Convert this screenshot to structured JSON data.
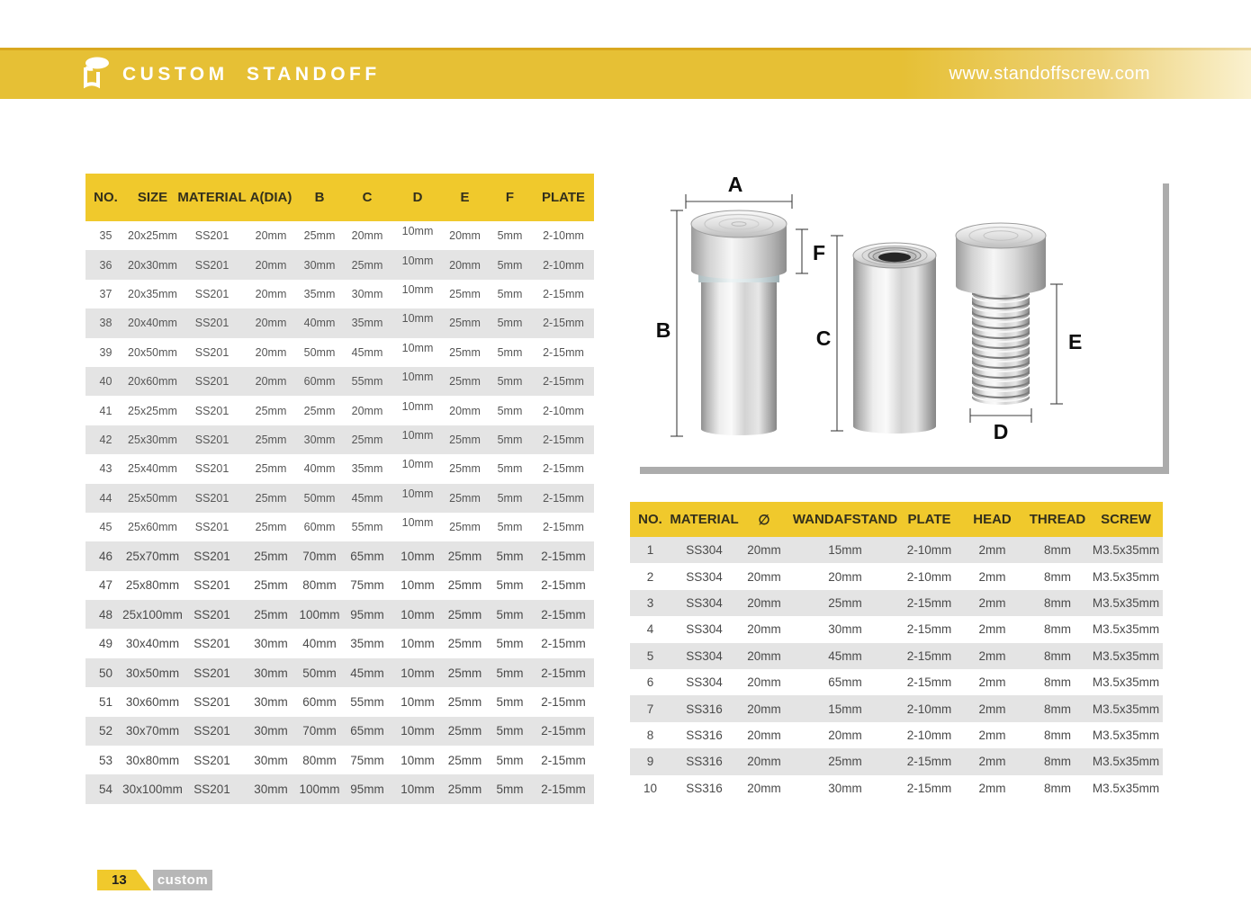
{
  "header": {
    "brand": "CUSTOM STANDOFF",
    "url": "www.standoffscrew.com"
  },
  "colors": {
    "banner_yellow": "#E6C035",
    "table_header_yellow": "#F0C92C",
    "row_alt_gray": "#E4E4E4",
    "shadow_gray": "#ACACAC",
    "footer_tab_gray": "#B7B7B7"
  },
  "left_table": {
    "columns": [
      "NO.",
      "SIZE",
      "MATERIAL",
      "A(DIA)",
      "B",
      "C",
      "D",
      "E",
      "F",
      "PLATE"
    ],
    "rows": [
      [
        "35",
        "20x25mm",
        "SS201",
        "20mm",
        "25mm",
        "20mm",
        "10mm",
        "20mm",
        "5mm",
        "2-10mm"
      ],
      [
        "36",
        "20x30mm",
        "SS201",
        "20mm",
        "30mm",
        "25mm",
        "10mm",
        "20mm",
        "5mm",
        "2-10mm"
      ],
      [
        "37",
        "20x35mm",
        "SS201",
        "20mm",
        "35mm",
        "30mm",
        "10mm",
        "25mm",
        "5mm",
        "2-15mm"
      ],
      [
        "38",
        "20x40mm",
        "SS201",
        "20mm",
        "40mm",
        "35mm",
        "10mm",
        "25mm",
        "5mm",
        "2-15mm"
      ],
      [
        "39",
        "20x50mm",
        "SS201",
        "20mm",
        "50mm",
        "45mm",
        "10mm",
        "25mm",
        "5mm",
        "2-15mm"
      ],
      [
        "40",
        "20x60mm",
        "SS201",
        "20mm",
        "60mm",
        "55mm",
        "10mm",
        "25mm",
        "5mm",
        "2-15mm"
      ],
      [
        "41",
        "25x25mm",
        "SS201",
        "25mm",
        "25mm",
        "20mm",
        "10mm",
        "20mm",
        "5mm",
        "2-10mm"
      ],
      [
        "42",
        "25x30mm",
        "SS201",
        "25mm",
        "30mm",
        "25mm",
        "10mm",
        "25mm",
        "5mm",
        "2-15mm"
      ],
      [
        "43",
        "25x40mm",
        "SS201",
        "25mm",
        "40mm",
        "35mm",
        "10mm",
        "25mm",
        "5mm",
        "2-15mm"
      ],
      [
        "44",
        "25x50mm",
        "SS201",
        "25mm",
        "50mm",
        "45mm",
        "10mm",
        "25mm",
        "5mm",
        "2-15mm"
      ],
      [
        "45",
        "25x60mm",
        "SS201",
        "25mm",
        "60mm",
        "55mm",
        "10mm",
        "25mm",
        "5mm",
        "2-15mm"
      ],
      [
        "46",
        "25x70mm",
        "SS201",
        "25mm",
        "70mm",
        "65mm",
        "10mm",
        "25mm",
        "5mm",
        "2-15mm"
      ],
      [
        "47",
        "25x80mm",
        "SS201",
        "25mm",
        "80mm",
        "75mm",
        "10mm",
        "25mm",
        "5mm",
        "2-15mm"
      ],
      [
        "48",
        "25x100mm",
        "SS201",
        "25mm",
        "100mm",
        "95mm",
        "10mm",
        "25mm",
        "5mm",
        "2-15mm"
      ],
      [
        "49",
        "30x40mm",
        "SS201",
        "30mm",
        "40mm",
        "35mm",
        "10mm",
        "25mm",
        "5mm",
        "2-15mm"
      ],
      [
        "50",
        "30x50mm",
        "SS201",
        "30mm",
        "50mm",
        "45mm",
        "10mm",
        "25mm",
        "5mm",
        "2-15mm"
      ],
      [
        "51",
        "30x60mm",
        "SS201",
        "30mm",
        "60mm",
        "55mm",
        "10mm",
        "25mm",
        "5mm",
        "2-15mm"
      ],
      [
        "52",
        "30x70mm",
        "SS201",
        "30mm",
        "70mm",
        "65mm",
        "10mm",
        "25mm",
        "5mm",
        "2-15mm"
      ],
      [
        "53",
        "30x80mm",
        "SS201",
        "30mm",
        "80mm",
        "75mm",
        "10mm",
        "25mm",
        "5mm",
        "2-15mm"
      ],
      [
        "54",
        "30x100mm",
        "SS201",
        "30mm",
        "100mm",
        "95mm",
        "10mm",
        "25mm",
        "5mm",
        "2-15mm"
      ]
    ]
  },
  "diagram": {
    "dimension_labels": {
      "a": "A",
      "b": "B",
      "c": "C",
      "d": "D",
      "e": "E",
      "f": "F"
    }
  },
  "right_table": {
    "columns": [
      "NO.",
      "MATERIAL",
      "∅",
      "WANDAFSTAND",
      "PLATE",
      "HEAD",
      "THREAD",
      "SCREW"
    ],
    "rows": [
      [
        "1",
        "SS304",
        "20mm",
        "15mm",
        "2-10mm",
        "2mm",
        "8mm",
        "M3.5x35mm"
      ],
      [
        "2",
        "SS304",
        "20mm",
        "20mm",
        "2-10mm",
        "2mm",
        "8mm",
        "M3.5x35mm"
      ],
      [
        "3",
        "SS304",
        "20mm",
        "25mm",
        "2-15mm",
        "2mm",
        "8mm",
        "M3.5x35mm"
      ],
      [
        "4",
        "SS304",
        "20mm",
        "30mm",
        "2-15mm",
        "2mm",
        "8mm",
        "M3.5x35mm"
      ],
      [
        "5",
        "SS304",
        "20mm",
        "45mm",
        "2-15mm",
        "2mm",
        "8mm",
        "M3.5x35mm"
      ],
      [
        "6",
        "SS304",
        "20mm",
        "65mm",
        "2-15mm",
        "2mm",
        "8mm",
        "M3.5x35mm"
      ],
      [
        "7",
        "SS316",
        "20mm",
        "15mm",
        "2-10mm",
        "2mm",
        "8mm",
        "M3.5x35mm"
      ],
      [
        "8",
        "SS316",
        "20mm",
        "20mm",
        "2-10mm",
        "2mm",
        "8mm",
        "M3.5x35mm"
      ],
      [
        "9",
        "SS316",
        "20mm",
        "25mm",
        "2-15mm",
        "2mm",
        "8mm",
        "M3.5x35mm"
      ],
      [
        "10",
        "SS316",
        "20mm",
        "30mm",
        "2-15mm",
        "2mm",
        "8mm",
        "M3.5x35mm"
      ]
    ]
  },
  "footer": {
    "page_number": "13",
    "tab_label": "custom"
  }
}
